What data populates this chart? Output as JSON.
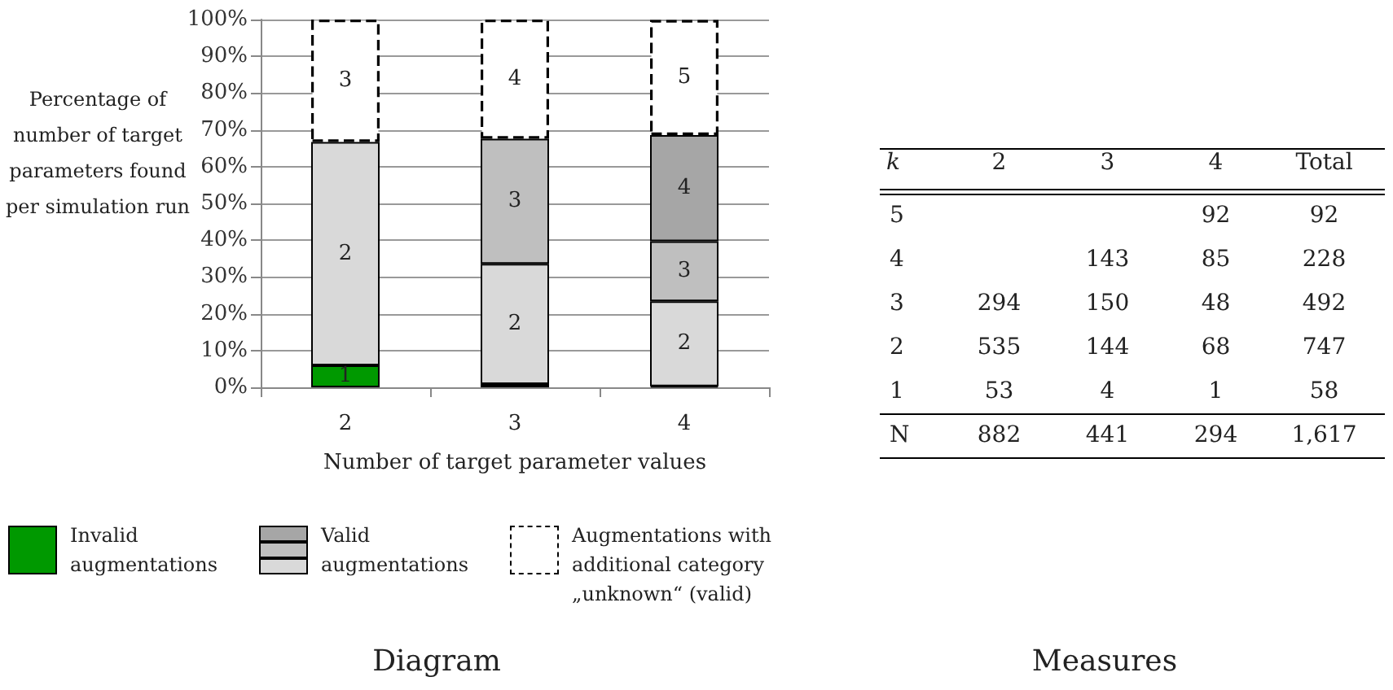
{
  "chart_data": [
    {
      "type": "bar",
      "title": "Diagram",
      "xlabel": "Number of target parameter values",
      "ylabel": "Percentage of number of target parameters found per simulation run",
      "categories": [
        "2",
        "3",
        "4"
      ],
      "stacked": true,
      "series": [
        {
          "name": "1",
          "color": "#009900",
          "values": [
            6.0,
            0.9,
            0.3
          ]
        },
        {
          "name": "2",
          "color": "#d9d9d9",
          "values": [
            60.7,
            32.7,
            23.1
          ]
        },
        {
          "name": "3",
          "color": "#bfbfbf",
          "values": [
            null,
            34.0,
            16.3
          ]
        },
        {
          "name": "4",
          "color": "#a6a6a6",
          "values": [
            null,
            null,
            28.9
          ]
        },
        {
          "name": "3",
          "color": "#ffffff",
          "line_style": "dashed",
          "values": [
            33.3,
            null,
            null
          ]
        },
        {
          "name": "4",
          "color": "#ffffff",
          "line_style": "dashed",
          "values": [
            null,
            32.4,
            null
          ]
        },
        {
          "name": "5",
          "color": "#ffffff",
          "line_style": "dashed",
          "values": [
            null,
            null,
            31.3
          ]
        }
      ],
      "annotations": [
        "Invalid augmentations",
        "Valid augmentations",
        "Augmentations with additional category „unknown“ (valid)"
      ],
      "ylim": [
        0,
        100
      ],
      "yticks": [
        {
          "value": 0,
          "label": "0%"
        },
        {
          "value": 10,
          "label": "10%"
        },
        {
          "value": 20,
          "label": "20%"
        },
        {
          "value": 30,
          "label": "30%"
        },
        {
          "value": 40,
          "label": "40%"
        },
        {
          "value": 50,
          "label": "50%"
        },
        {
          "value": 60,
          "label": "60%"
        },
        {
          "value": 70,
          "label": "70%"
        },
        {
          "value": 80,
          "label": "80%"
        },
        {
          "value": 90,
          "label": "90%"
        },
        {
          "value": 100,
          "label": "100%"
        }
      ],
      "grid": "y"
    },
    {
      "type": "heatmap",
      "title": "Measures",
      "ylabel": "k",
      "data_labels": true,
      "categories": [
        "2",
        "3",
        "4",
        "Total"
      ],
      "y_categories": [
        "5",
        "4",
        "3",
        "2",
        "1",
        "N"
      ],
      "cells": [
        [
          null,
          null,
          92,
          92
        ],
        [
          null,
          143,
          85,
          228
        ],
        [
          294,
          150,
          48,
          492
        ],
        [
          535,
          144,
          68,
          747
        ],
        [
          53,
          4,
          1,
          58
        ],
        [
          882,
          441,
          294,
          1617
        ]
      ],
      "cell_labels": [
        [
          null,
          null,
          "92",
          "92"
        ],
        [
          null,
          "143",
          "85",
          "228"
        ],
        [
          "294",
          "150",
          "48",
          "492"
        ],
        [
          "535",
          "144",
          "68",
          "747"
        ],
        [
          "53",
          "4",
          "1",
          "58"
        ],
        [
          "882",
          "441",
          "294",
          "1,617"
        ]
      ]
    }
  ]
}
